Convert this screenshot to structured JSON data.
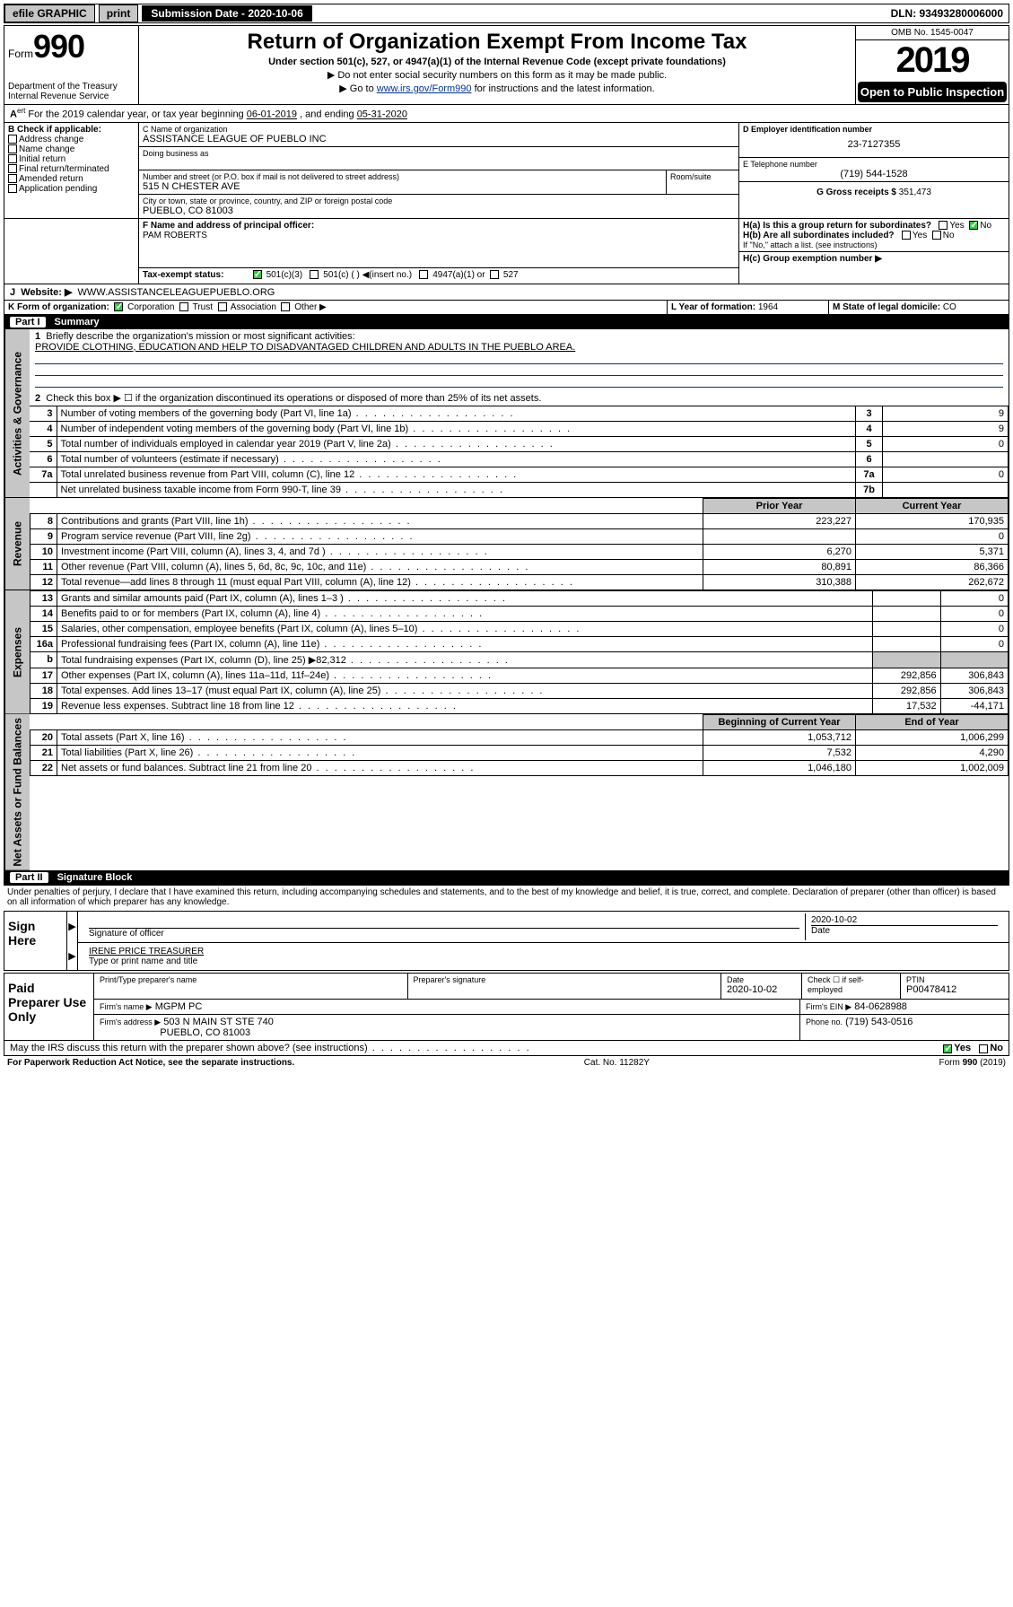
{
  "top": {
    "efile": "efile GRAPHIC",
    "print": "print",
    "sub_label": "Submission Date - 2020-10-06",
    "dln": "DLN: 93493280006000"
  },
  "header": {
    "form_label": "Form",
    "form_num": "990",
    "dept": "Department of the Treasury\nInternal Revenue Service",
    "title": "Return of Organization Exempt From Income Tax",
    "sub": "Under section 501(c), 527, or 4947(a)(1) of the Internal Revenue Code (except private foundations)",
    "note1_pre": "▶ Do not enter social security numbers on this form as it may be made public.",
    "note2_pre": "▶ Go to ",
    "note2_link": "www.irs.gov/Form990",
    "note2_post": " for instructions and the latest information.",
    "omb": "OMB No. 1545-0047",
    "year": "2019",
    "open": "Open to Public Inspection"
  },
  "A": {
    "text_pre": "For the 2019 calendar year, or tax year beginning ",
    "begin": "06-01-2019",
    "mid": " , and ending ",
    "end": "05-31-2020"
  },
  "B": {
    "label": "B Check if applicable:",
    "items": [
      "Address change",
      "Name change",
      "Initial return",
      "Final return/terminated",
      "Amended return",
      "Application pending"
    ]
  },
  "C": {
    "name_label": "C Name of organization",
    "name": "ASSISTANCE LEAGUE OF PUEBLO INC",
    "dba_label": "Doing business as",
    "street_label": "Number and street (or P.O. box if mail is not delivered to street address)",
    "room_label": "Room/suite",
    "street": "515 N CHESTER AVE",
    "city_label": "City or town, state or province, country, and ZIP or foreign postal code",
    "city": "PUEBLO, CO  81003"
  },
  "D": {
    "label": "D Employer identification number",
    "val": "23-7127355"
  },
  "E": {
    "label": "E Telephone number",
    "val": "(719) 544-1528"
  },
  "G": {
    "label": "G Gross receipts $",
    "val": "351,473"
  },
  "F": {
    "label": "F  Name and address of principal officer:",
    "val": "PAM ROBERTS"
  },
  "H": {
    "a": "H(a)  Is this a group return for subordinates?",
    "b": "H(b)  Are all subordinates included?",
    "b_note": "If \"No,\" attach a list. (see instructions)",
    "c": "H(c)  Group exemption number ▶",
    "yes": "Yes",
    "no": "No"
  },
  "I": {
    "label": "Tax-exempt status:",
    "opts": [
      "501(c)(3)",
      "501(c) (   ) ◀(insert no.)",
      "4947(a)(1) or",
      "527"
    ]
  },
  "J": {
    "label": "Website: ▶",
    "val": "WWW.ASSISTANCELEAGUEPUEBLO.ORG"
  },
  "K": {
    "label": "K Form of organization:",
    "opts": [
      "Corporation",
      "Trust",
      "Association",
      "Other ▶"
    ]
  },
  "L": {
    "label": "L Year of formation:",
    "val": "1964"
  },
  "M": {
    "label": "M State of legal domicile:",
    "val": "CO"
  },
  "part1": {
    "label": "Part I",
    "title": "Summary"
  },
  "side": {
    "ag": "Activities & Governance",
    "rev": "Revenue",
    "exp": "Expenses",
    "nab": "Net Assets or Fund Balances"
  },
  "s1": {
    "l1_label": "Briefly describe the organization's mission or most significant activities:",
    "l1_val": "PROVIDE CLOTHING, EDUCATION AND HELP TO DISADVANTAGED CHILDREN AND ADULTS IN THE PUEBLO AREA.",
    "l2": "Check this box ▶ ☐  if the organization discontinued its operations or disposed of more than 25% of its net assets.",
    "rows_ag": [
      {
        "n": "3",
        "t": "Number of voting members of the governing body (Part VI, line 1a)",
        "c": "3",
        "v": "9"
      },
      {
        "n": "4",
        "t": "Number of independent voting members of the governing body (Part VI, line 1b)",
        "c": "4",
        "v": "9"
      },
      {
        "n": "5",
        "t": "Total number of individuals employed in calendar year 2019 (Part V, line 2a)",
        "c": "5",
        "v": "0"
      },
      {
        "n": "6",
        "t": "Total number of volunteers (estimate if necessary)",
        "c": "6",
        "v": ""
      },
      {
        "n": "7a",
        "t": "Total unrelated business revenue from Part VIII, column (C), line 12",
        "c": "7a",
        "v": "0"
      },
      {
        "n": "",
        "t": "Net unrelated business taxable income from Form 990-T, line 39",
        "c": "7b",
        "v": ""
      }
    ],
    "col_prior": "Prior Year",
    "col_curr": "Current Year",
    "rows_rev": [
      {
        "n": "8",
        "t": "Contributions and grants (Part VIII, line 1h)",
        "p": "223,227",
        "c": "170,935"
      },
      {
        "n": "9",
        "t": "Program service revenue (Part VIII, line 2g)",
        "p": "",
        "c": "0"
      },
      {
        "n": "10",
        "t": "Investment income (Part VIII, column (A), lines 3, 4, and 7d )",
        "p": "6,270",
        "c": "5,371"
      },
      {
        "n": "11",
        "t": "Other revenue (Part VIII, column (A), lines 5, 6d, 8c, 9c, 10c, and 11e)",
        "p": "80,891",
        "c": "86,366"
      },
      {
        "n": "12",
        "t": "Total revenue—add lines 8 through 11 (must equal Part VIII, column (A), line 12)",
        "p": "310,388",
        "c": "262,672"
      }
    ],
    "rows_exp": [
      {
        "n": "13",
        "t": "Grants and similar amounts paid (Part IX, column (A), lines 1–3 )",
        "p": "",
        "c": "0"
      },
      {
        "n": "14",
        "t": "Benefits paid to or for members (Part IX, column (A), line 4)",
        "p": "",
        "c": "0"
      },
      {
        "n": "15",
        "t": "Salaries, other compensation, employee benefits (Part IX, column (A), lines 5–10)",
        "p": "",
        "c": "0"
      },
      {
        "n": "16a",
        "t": "Professional fundraising fees (Part IX, column (A), line 11e)",
        "p": "",
        "c": "0"
      },
      {
        "n": "b",
        "t": "Total fundraising expenses (Part IX, column (D), line 25) ▶82,312",
        "p": "SHADE",
        "c": "SHADE"
      },
      {
        "n": "17",
        "t": "Other expenses (Part IX, column (A), lines 11a–11d, 11f–24e)",
        "p": "292,856",
        "c": "306,843"
      },
      {
        "n": "18",
        "t": "Total expenses. Add lines 13–17 (must equal Part IX, column (A), line 25)",
        "p": "292,856",
        "c": "306,843"
      },
      {
        "n": "19",
        "t": "Revenue less expenses. Subtract line 18 from line 12",
        "p": "17,532",
        "c": "-44,171"
      }
    ],
    "col_beg": "Beginning of Current Year",
    "col_end": "End of Year",
    "rows_nab": [
      {
        "n": "20",
        "t": "Total assets (Part X, line 16)",
        "p": "1,053,712",
        "c": "1,006,299"
      },
      {
        "n": "21",
        "t": "Total liabilities (Part X, line 26)",
        "p": "7,532",
        "c": "4,290"
      },
      {
        "n": "22",
        "t": "Net assets or fund balances. Subtract line 21 from line 20",
        "p": "1,046,180",
        "c": "1,002,009"
      }
    ]
  },
  "part2": {
    "label": "Part II",
    "title": "Signature Block"
  },
  "perjury": "Under penalties of perjury, I declare that I have examined this return, including accompanying schedules and statements, and to the best of my knowledge and belief, it is true, correct, and complete. Declaration of preparer (other than officer) is based on all information of which preparer has any knowledge.",
  "sign": {
    "here": "Sign Here",
    "sig_officer": "Signature of officer",
    "date": "Date",
    "date_v": "2020-10-02",
    "name": "IRENE PRICE  TREASURER",
    "name_label": "Type or print name and title"
  },
  "paid": {
    "label": "Paid Preparer Use Only",
    "h1": "Print/Type preparer's name",
    "h2": "Preparer's signature",
    "h3": "Date",
    "h3v": "2020-10-02",
    "h4": "Check ☐ if self-employed",
    "h5": "PTIN",
    "h5v": "P00478412",
    "firm_name_l": "Firm's name    ▶",
    "firm_name": "MGPM PC",
    "firm_ein_l": "Firm's EIN ▶",
    "firm_ein": "84-0628988",
    "firm_addr_l": "Firm's address ▶",
    "firm_addr": "503 N MAIN ST STE 740",
    "firm_city": "PUEBLO, CO  81003",
    "phone_l": "Phone no.",
    "phone": "(719) 543-0516"
  },
  "discuss": "May the IRS discuss this return with the preparer shown above? (see instructions)",
  "foot": {
    "l": "For Paperwork Reduction Act Notice, see the separate instructions.",
    "m": "Cat. No. 11282Y",
    "r": "Form 990 (2019)"
  }
}
